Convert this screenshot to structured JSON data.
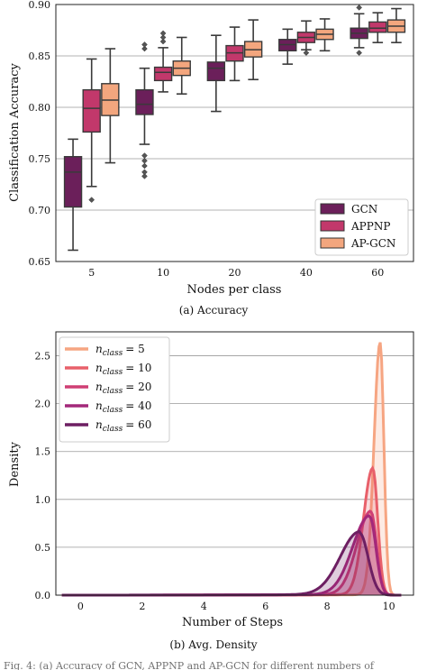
{
  "chart_data": [
    {
      "type": "box",
      "caption": "(a) Accuracy",
      "xlabel": "Nodes per class",
      "ylabel": "Classification Accuracy",
      "ylim": [
        0.65,
        0.9
      ],
      "yticks": [
        0.65,
        0.7,
        0.75,
        0.8,
        0.85,
        0.9
      ],
      "ytick_labels": [
        "0.65",
        "0.70",
        "0.75",
        "0.80",
        "0.85",
        "0.90"
      ],
      "grid": "horizontal",
      "legend_position": "bottom-right",
      "categories": [
        "5",
        "10",
        "20",
        "40",
        "60"
      ],
      "series": [
        {
          "name": "GCN",
          "color": "#6b1f5a",
          "boxes": [
            {
              "q1": 0.703,
              "median": 0.737,
              "q3": 0.752,
              "whislo": 0.661,
              "whishi": 0.769,
              "fliers": []
            },
            {
              "q1": 0.793,
              "median": 0.803,
              "q3": 0.817,
              "whislo": 0.764,
              "whishi": 0.838,
              "fliers": [
                0.733,
                0.737,
                0.743,
                0.748,
                0.753,
                0.857,
                0.861
              ]
            },
            {
              "q1": 0.826,
              "median": 0.838,
              "q3": 0.844,
              "whislo": 0.796,
              "whishi": 0.87,
              "fliers": []
            },
            {
              "q1": 0.855,
              "median": 0.861,
              "q3": 0.866,
              "whislo": 0.842,
              "whishi": 0.876,
              "fliers": []
            },
            {
              "q1": 0.867,
              "median": 0.872,
              "q3": 0.877,
              "whislo": 0.858,
              "whishi": 0.891,
              "fliers": [
                0.853,
                0.897
              ]
            }
          ]
        },
        {
          "name": "APPNP",
          "color": "#c2386b",
          "boxes": [
            {
              "q1": 0.776,
              "median": 0.799,
              "q3": 0.817,
              "whislo": 0.723,
              "whishi": 0.847,
              "fliers": [
                0.71
              ]
            },
            {
              "q1": 0.826,
              "median": 0.834,
              "q3": 0.839,
              "whislo": 0.815,
              "whishi": 0.858,
              "fliers": [
                0.864,
                0.868,
                0.872
              ]
            },
            {
              "q1": 0.845,
              "median": 0.853,
              "q3": 0.86,
              "whislo": 0.826,
              "whishi": 0.878,
              "fliers": []
            },
            {
              "q1": 0.863,
              "median": 0.868,
              "q3": 0.873,
              "whislo": 0.856,
              "whishi": 0.884,
              "fliers": [
                0.853
              ]
            },
            {
              "q1": 0.873,
              "median": 0.877,
              "q3": 0.883,
              "whislo": 0.863,
              "whishi": 0.892,
              "fliers": []
            }
          ]
        },
        {
          "name": "AP-GCN",
          "color": "#f3a67e",
          "boxes": [
            {
              "q1": 0.792,
              "median": 0.807,
              "q3": 0.823,
              "whislo": 0.746,
              "whishi": 0.857,
              "fliers": []
            },
            {
              "q1": 0.831,
              "median": 0.838,
              "q3": 0.845,
              "whislo": 0.813,
              "whishi": 0.868,
              "fliers": []
            },
            {
              "q1": 0.849,
              "median": 0.856,
              "q3": 0.864,
              "whislo": 0.827,
              "whishi": 0.885,
              "fliers": []
            },
            {
              "q1": 0.866,
              "median": 0.871,
              "q3": 0.876,
              "whislo": 0.855,
              "whishi": 0.886,
              "fliers": []
            },
            {
              "q1": 0.873,
              "median": 0.879,
              "q3": 0.885,
              "whislo": 0.863,
              "whishi": 0.896,
              "fliers": []
            }
          ]
        }
      ]
    },
    {
      "type": "area",
      "subtype": "kde",
      "caption": "(b) Avg. Density",
      "xlabel": "Number of Steps",
      "ylabel": "Density",
      "xlim": [
        -0.8,
        10.8
      ],
      "ylim": [
        0,
        2.75
      ],
      "xticks": [
        0,
        2,
        4,
        6,
        8,
        10
      ],
      "xtick_labels": [
        "0",
        "2",
        "4",
        "6",
        "8",
        "10"
      ],
      "yticks": [
        0,
        0.5,
        1.0,
        1.5,
        2.0,
        2.5
      ],
      "ytick_labels": [
        "0.0",
        "0.5",
        "1.0",
        "1.5",
        "2.0",
        "2.5"
      ],
      "grid": "horizontal",
      "legend_position": "top-left",
      "series": [
        {
          "name_base": "n",
          "name_sub": "class",
          "name_value": "= 5",
          "color": "#f6a582",
          "peak_x": 9.72,
          "peak_y": 2.64,
          "sd_left": 0.2,
          "sd_right": 0.12,
          "tail_weight": 0.006
        },
        {
          "name_base": "n",
          "name_sub": "class",
          "name_value": "= 10",
          "color": "#e8606a",
          "peak_x": 9.48,
          "peak_y": 1.32,
          "sd_left": 0.3,
          "sd_right": 0.16,
          "tail_weight": 0.008
        },
        {
          "name_base": "n",
          "name_sub": "class",
          "name_value": "= 20",
          "color": "#cf3f74",
          "peak_x": 9.42,
          "peak_y": 0.87,
          "sd_left": 0.45,
          "sd_right": 0.18,
          "tail_weight": 0.01
        },
        {
          "name_base": "n",
          "name_sub": "class",
          "name_value": "= 40",
          "color": "#a3287a",
          "peak_x": 9.38,
          "peak_y": 0.82,
          "sd_left": 0.55,
          "sd_right": 0.2,
          "tail_weight": 0.012
        },
        {
          "name_base": "n",
          "name_sub": "class",
          "name_value": "= 60",
          "color": "#6d1f62",
          "peak_x": 9.05,
          "peak_y": 0.65,
          "sd_left": 0.62,
          "sd_right": 0.28,
          "tail_weight": 0.014
        }
      ]
    }
  ],
  "footer_text": "Fig. 4: (a) Accuracy of GCN, APPNP and AP-GCN for different numbers of"
}
